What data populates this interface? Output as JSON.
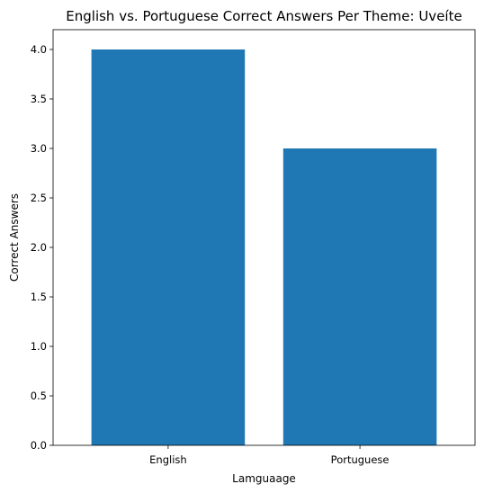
{
  "chart_data": {
    "type": "bar",
    "title": "English vs. Portuguese Correct Answers Per Theme: Uveíte",
    "xlabel": "Lamguaage",
    "ylabel": "Correct Answers",
    "categories": [
      "English",
      "Portuguese"
    ],
    "values": [
      4,
      3
    ],
    "ylim": [
      0,
      4.2
    ],
    "yticks": [
      "0.0",
      "0.5",
      "1.0",
      "1.5",
      "2.0",
      "2.5",
      "3.0",
      "3.5",
      "4.0"
    ],
    "bar_color": "#1f77b4",
    "grid": false,
    "legend": "none"
  }
}
